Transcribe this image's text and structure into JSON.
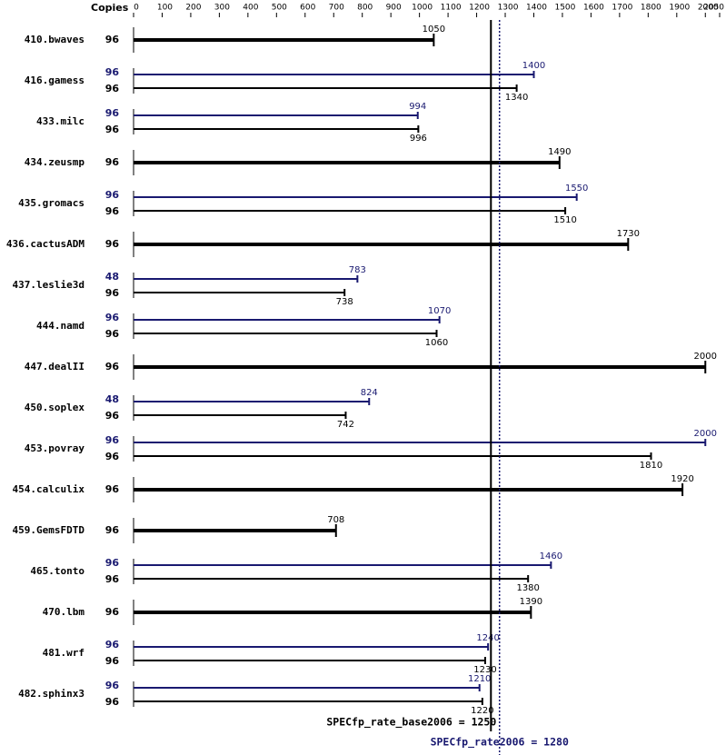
{
  "chart_data": {
    "type": "bar",
    "orientation": "horizontal",
    "axis_header": "Copies",
    "categories": [
      "410.bwaves",
      "416.gamess",
      "433.milc",
      "434.zeusmp",
      "435.gromacs",
      "436.cactusADM",
      "437.leslie3d",
      "444.namd",
      "447.dealII",
      "450.soplex",
      "453.povray",
      "454.calculix",
      "459.GemsFDTD",
      "465.tonto",
      "470.lbm",
      "481.wrf",
      "482.sphinx3"
    ],
    "series": [
      {
        "color": "#191970",
        "copies": [
          null,
          96,
          96,
          null,
          96,
          null,
          48,
          96,
          null,
          48,
          96,
          null,
          null,
          96,
          null,
          96,
          96
        ],
        "values": [
          null,
          1400,
          994,
          null,
          1550,
          null,
          783,
          1070,
          null,
          824,
          2000,
          null,
          null,
          1460,
          null,
          1240,
          1210
        ]
      },
      {
        "color": "#000000",
        "copies": [
          96,
          96,
          96,
          96,
          96,
          96,
          96,
          96,
          96,
          96,
          96,
          96,
          96,
          96,
          96,
          96,
          96
        ],
        "values": [
          1050,
          1340,
          996,
          1490,
          1510,
          1730,
          738,
          1060,
          2000,
          742,
          1810,
          1920,
          708,
          1380,
          1390,
          1230,
          1220
        ]
      }
    ],
    "xlim": [
      0,
      2050
    ],
    "xticks": [
      0,
      100,
      200,
      300,
      400,
      500,
      600,
      700,
      800,
      900,
      1000,
      1100,
      1200,
      1300,
      1400,
      1500,
      1600,
      1700,
      1800,
      1900,
      2000,
      2050
    ],
    "base_summary": {
      "value": 1250,
      "label": "SPECfp_rate_base2006 = 1250",
      "color": "#000000"
    },
    "peak_summary": {
      "value": 1280,
      "label": "SPECfp_rate2006 = 1280",
      "color": "#191970"
    }
  }
}
